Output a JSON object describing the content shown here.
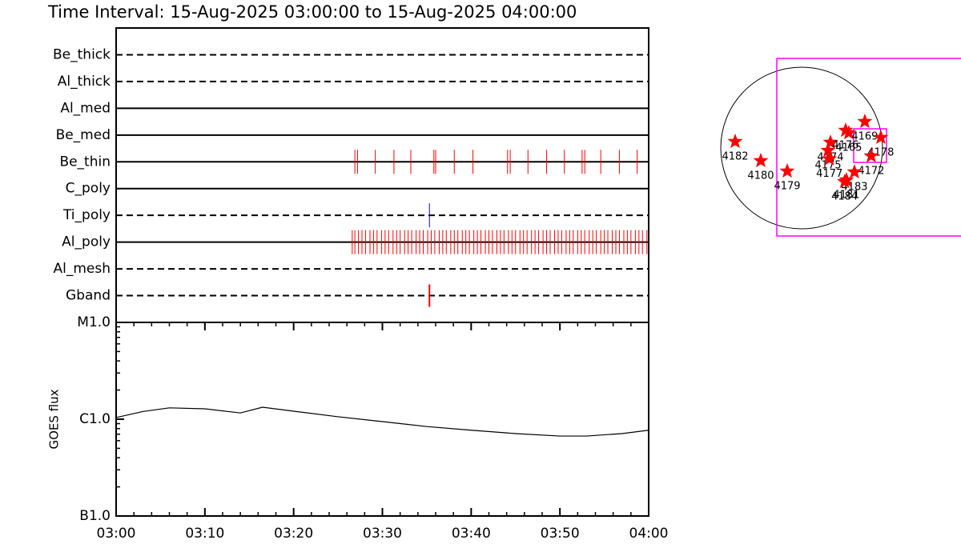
{
  "chart_data": [
    {
      "type": "timeline",
      "title": "Time Interval: 15-Aug-2025 03:00:00 to 15-Aug-2025 04:00:00",
      "xlim": [
        0,
        60
      ],
      "rows": [
        {
          "name": "Be_thick",
          "line": "dashed",
          "color": "#ff0000",
          "x": []
        },
        {
          "name": "Al_thick",
          "line": "dashed",
          "color": "#ff0000",
          "x": []
        },
        {
          "name": "Al_med",
          "line": "solid",
          "color": "#ff0000",
          "x": []
        },
        {
          "name": "Be_med",
          "line": "solid",
          "color": "#ff0000",
          "x": []
        },
        {
          "name": "Be_thin",
          "line": "solid",
          "color": "#ff0000",
          "x": [
            26.9,
            27.2,
            29.2,
            31.3,
            33.2,
            35.8,
            36.0,
            38.1,
            40.2,
            44.1,
            44.4,
            46.4,
            48.5,
            50.5,
            52.5,
            52.8,
            54.6,
            56.7,
            58.7
          ]
        },
        {
          "name": "C_poly",
          "line": "solid",
          "color": "#ff0000",
          "x": []
        },
        {
          "name": "Ti_poly",
          "line": "dashed",
          "color": "#0000ff",
          "x": [
            35.3
          ]
        },
        {
          "name": "Al_poly",
          "line": "solid",
          "color": "#ff0000",
          "x": [
            26.6,
            26.9,
            27.3,
            27.7,
            28.1,
            28.6,
            29.0,
            29.4,
            29.9,
            30.3,
            30.7,
            31.2,
            31.6,
            32.0,
            32.5,
            32.9,
            33.3,
            33.8,
            34.2,
            34.6,
            35.1,
            35.5,
            35.9,
            36.4,
            36.8,
            37.2,
            37.7,
            38.1,
            38.5,
            39.0,
            39.4,
            39.8,
            40.3,
            40.7,
            41.1,
            41.6,
            42.0,
            42.4,
            42.9,
            43.3,
            43.7,
            44.2,
            44.6,
            45.0,
            45.5,
            45.9,
            46.3,
            46.8,
            47.2,
            47.6,
            48.1,
            48.5,
            48.9,
            49.4,
            49.8,
            50.2,
            50.7,
            51.1,
            51.5,
            52.0,
            52.4,
            52.8,
            53.3,
            53.7,
            54.1,
            54.6,
            55.0,
            55.4,
            55.9,
            56.3,
            56.7,
            57.2,
            57.6,
            58.0,
            58.5,
            58.9,
            59.3,
            59.8
          ]
        },
        {
          "name": "Al_mesh",
          "line": "dashed",
          "color": "#ff0000",
          "x": []
        },
        {
          "name": "Gband",
          "line": "dashed",
          "color": "#ff0000",
          "x": [
            35.3
          ]
        }
      ]
    },
    {
      "type": "line",
      "ylabel": "GOES flux",
      "log": true,
      "color": "#000000",
      "x": [
        0,
        3,
        6,
        10,
        14,
        16.5,
        20,
        25,
        30,
        35,
        40,
        45,
        50,
        53,
        57,
        60
      ],
      "values": [
        1.04e-06,
        1.2e-06,
        1.31e-06,
        1.28e-06,
        1.16e-06,
        1.33e-06,
        1.21e-06,
        1.06e-06,
        9.45e-07,
        8.4e-07,
        7.7e-07,
        7.1e-07,
        6.7e-07,
        6.7e-07,
        7.1e-07,
        7.7e-07
      ],
      "xlim": [
        0,
        60
      ],
      "xticks": [
        {
          "value": 0,
          "label": "03:00"
        },
        {
          "value": 10,
          "label": "03:10"
        },
        {
          "value": 20,
          "label": "03:20"
        },
        {
          "value": 30,
          "label": "03:30"
        },
        {
          "value": 40,
          "label": "03:40"
        },
        {
          "value": 50,
          "label": "03:50"
        },
        {
          "value": 60,
          "label": "04:00"
        }
      ],
      "minor_xticks": [
        2,
        4,
        6,
        8,
        12,
        14,
        16,
        18,
        22,
        24,
        26,
        28,
        32,
        34,
        36,
        38,
        42,
        44,
        46,
        48,
        52,
        54,
        56,
        58
      ],
      "ylim": [
        1e-07,
        1e-05
      ],
      "yticks": [
        {
          "value": 1e-07,
          "label": "B1.0"
        },
        {
          "value": 1e-06,
          "label": "C1.0"
        },
        {
          "value": 1e-05,
          "label": "M1.0"
        }
      ],
      "minor_yticks": [
        2e-07,
        3e-07,
        4e-07,
        5e-07,
        6e-07,
        7e-07,
        8e-07,
        9e-07,
        2e-06,
        3e-06,
        4e-06,
        5e-06,
        6e-06,
        7e-06,
        8e-06,
        9e-06
      ]
    },
    {
      "type": "map",
      "color": "#ff0000",
      "regions": [
        {
          "label": "4182",
          "x": -789,
          "y": 76
        },
        {
          "label": "4180",
          "x": -485,
          "y": -152
        },
        {
          "label": "4179",
          "x": -171,
          "y": -276
        },
        {
          "label": "4174",
          "x": 342,
          "y": 67
        },
        {
          "label": "4175",
          "x": 314,
          "y": -29
        },
        {
          "label": "4177",
          "x": 330,
          "y": -130
        },
        {
          "label": "4176",
          "x": 522,
          "y": 209
        },
        {
          "label": "4165",
          "x": 560,
          "y": 180
        },
        {
          "label": "4169",
          "x": 750,
          "y": 314
        },
        {
          "label": "4178",
          "x": 940,
          "y": 124
        },
        {
          "label": "4172",
          "x": 826,
          "y": -95
        },
        {
          "label": "4183",
          "x": 627,
          "y": -285
        },
        {
          "label": "4181",
          "x": 532,
          "y": -380
        },
        {
          "label": "4184",
          "x": 510,
          "y": -400
        }
      ]
    }
  ]
}
